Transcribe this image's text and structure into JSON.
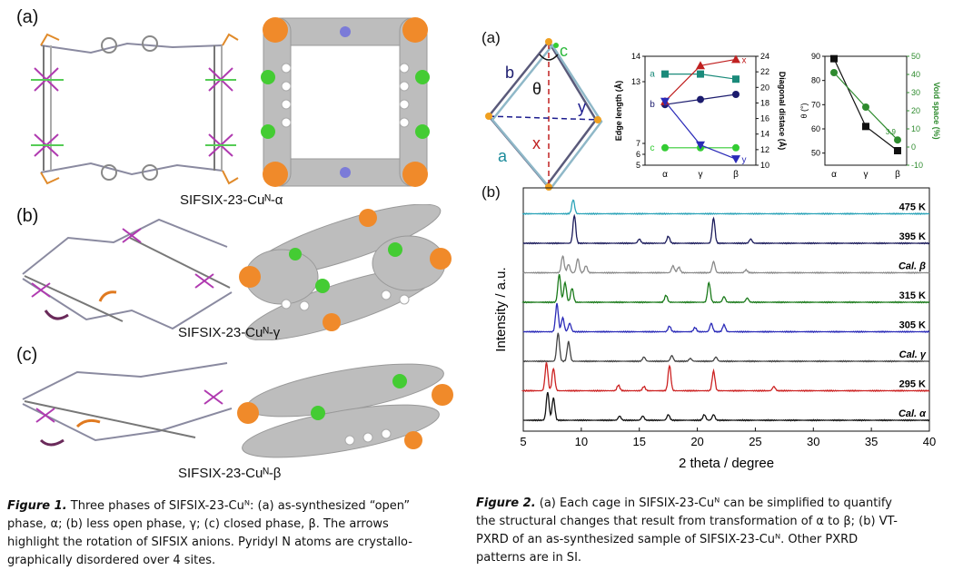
{
  "fig1": {
    "panel_a": "(a)",
    "panel_b": "(b)",
    "panel_c": "(c)",
    "phase_a": "SIFSIX-23-Cuᴺ-α",
    "phase_b": "SIFSIX-23-Cuᴺ-γ",
    "phase_c": "SIFSIX-23-Cuᴺ-β",
    "caption_label": "Figure 1.",
    "caption_l1": " Three phases of SIFSIX-23-Cuᴺ: (a) as-synthesized “open”",
    "caption_l2": "phase, α; (b) less open phase, γ; (c) closed phase, β. The arrows",
    "caption_l3": "highlight the rotation of SIFSIX anions. Pyridyl N atoms are crystallo-",
    "caption_l4": "graphically disordered over 4 sites."
  },
  "fig2": {
    "panel_a": "(a)",
    "panel_b": "(b)",
    "cage_labels": {
      "b": "b",
      "c": "c",
      "a": "a",
      "theta": "θ",
      "y": "y",
      "x": "x"
    },
    "caption_label": "Figure 2.",
    "caption_l1": " (a) Each cage in SIFSIX-23-Cuᴺ can be simplified to quantify",
    "caption_l2": "the structural changes that result from transformation of α to β; (b) VT-",
    "caption_l3": "PXRD of an as-synthesized sample of SIFSIX-23-Cuᴺ. Other PXRD",
    "caption_l4": "patterns are in SI."
  },
  "chart_data": [
    {
      "type": "line",
      "categories": [
        "α",
        "γ",
        "β"
      ],
      "ylabel": "Edge length (Å)",
      "y2label": "Diagonal distace (Å)",
      "ylim": [
        5,
        14
      ],
      "yticks": [
        "5",
        "6",
        "7",
        "13",
        "14"
      ],
      "y2lim": [
        10,
        24
      ],
      "y2ticks": [
        "10",
        "12",
        "14",
        "16",
        "18",
        "20",
        "22",
        "24"
      ],
      "series": [
        {
          "name": "a",
          "axis": "left",
          "color": "#1a8a7a",
          "marker": "square",
          "values": [
            13.3,
            13.3,
            13.1
          ]
        },
        {
          "name": "b",
          "axis": "left",
          "color": "#1c1c6e",
          "marker": "circle",
          "values": [
            12.1,
            12.3,
            11.5
          ]
        },
        {
          "name": "c",
          "axis": "left",
          "color": "#33cc33",
          "marker": "circle",
          "values": [
            6.6,
            6.6,
            6.6
          ]
        },
        {
          "name": "x",
          "axis": "right",
          "color": "#c02020",
          "marker": "triangle-up",
          "values": [
            18.2,
            22.8,
            23.6
          ]
        },
        {
          "name": "y",
          "axis": "right",
          "color": "#2a2ab8",
          "marker": "triangle-down",
          "values": [
            18.2,
            12.6,
            10.8
          ]
        }
      ],
      "point_labels": [
        "a",
        "b",
        "c",
        "x",
        "y"
      ],
      "grid": false
    },
    {
      "type": "line",
      "categories": [
        "α",
        "γ",
        "β"
      ],
      "ylabel": "θ (°)",
      "y2label": "Void space (%)",
      "ylim": [
        45,
        90
      ],
      "yticks": [
        "50",
        "60",
        "70",
        "80",
        "90"
      ],
      "y2lim": [
        -10,
        50
      ],
      "y2ticks": [
        "-10",
        "0",
        "10",
        "20",
        "30",
        "40",
        "50"
      ],
      "series": [
        {
          "axis": "left",
          "color": "#111111",
          "marker": "square",
          "values": [
            89,
            61,
            51
          ]
        },
        {
          "axis": "right",
          "color": "#2e8b2e",
          "marker": "circle",
          "values": [
            41,
            22,
            3.9
          ]
        }
      ],
      "annotation": "3.9",
      "grid": false
    },
    {
      "type": "line",
      "xlabel": "2 theta / degree",
      "ylabel": "Intensity / a.u.",
      "xlim": [
        5,
        40
      ],
      "xticks": [
        "5",
        "10",
        "15",
        "20",
        "25",
        "30",
        "35",
        "40"
      ],
      "series": [
        {
          "name": "475 K",
          "color": "#2ba3b8",
          "peaks": [
            [
              9.3,
              0.5
            ]
          ]
        },
        {
          "name": "395 K",
          "color": "#1c1c5c",
          "peaks": [
            [
              9.4,
              1.0
            ],
            [
              15.0,
              0.15
            ],
            [
              17.5,
              0.25
            ],
            [
              21.4,
              0.9
            ],
            [
              24.6,
              0.15
            ]
          ]
        },
        {
          "name": "Cal. β",
          "color": "#8a8a8a",
          "peaks": [
            [
              8.4,
              0.6
            ],
            [
              8.9,
              0.3
            ],
            [
              9.7,
              0.5
            ],
            [
              10.4,
              0.25
            ],
            [
              17.9,
              0.25
            ],
            [
              18.4,
              0.2
            ],
            [
              21.4,
              0.4
            ],
            [
              24.2,
              0.1
            ]
          ]
        },
        {
          "name": "315 K",
          "color": "#1a7a1a",
          "peaks": [
            [
              8.1,
              1.0
            ],
            [
              8.6,
              0.7
            ],
            [
              9.2,
              0.5
            ],
            [
              17.3,
              0.25
            ],
            [
              21.0,
              0.7
            ],
            [
              22.3,
              0.2
            ],
            [
              24.3,
              0.15
            ]
          ]
        },
        {
          "name": "305 K",
          "color": "#2a2ab8",
          "peaks": [
            [
              7.9,
              1.0
            ],
            [
              8.4,
              0.5
            ],
            [
              9.0,
              0.3
            ],
            [
              17.6,
              0.2
            ],
            [
              19.8,
              0.15
            ],
            [
              21.2,
              0.3
            ],
            [
              22.3,
              0.25
            ]
          ]
        },
        {
          "name": "Cal. γ",
          "color": "#444444",
          "peaks": [
            [
              8.0,
              1.0
            ],
            [
              8.9,
              0.7
            ],
            [
              15.4,
              0.15
            ],
            [
              17.8,
              0.2
            ],
            [
              19.4,
              0.1
            ],
            [
              21.6,
              0.15
            ]
          ]
        },
        {
          "name": "295 K",
          "color": "#cc2222",
          "peaks": [
            [
              7.0,
              1.0
            ],
            [
              7.6,
              0.8
            ],
            [
              13.2,
              0.2
            ],
            [
              15.4,
              0.15
            ],
            [
              17.6,
              0.9
            ],
            [
              21.4,
              0.7
            ],
            [
              26.6,
              0.15
            ]
          ]
        },
        {
          "name": "Cal. α",
          "color": "#111111",
          "peaks": [
            [
              7.1,
              1.0
            ],
            [
              7.6,
              0.8
            ],
            [
              13.3,
              0.15
            ],
            [
              15.3,
              0.15
            ],
            [
              17.5,
              0.2
            ],
            [
              20.6,
              0.2
            ],
            [
              21.4,
              0.2
            ]
          ]
        }
      ],
      "grid": false
    }
  ]
}
